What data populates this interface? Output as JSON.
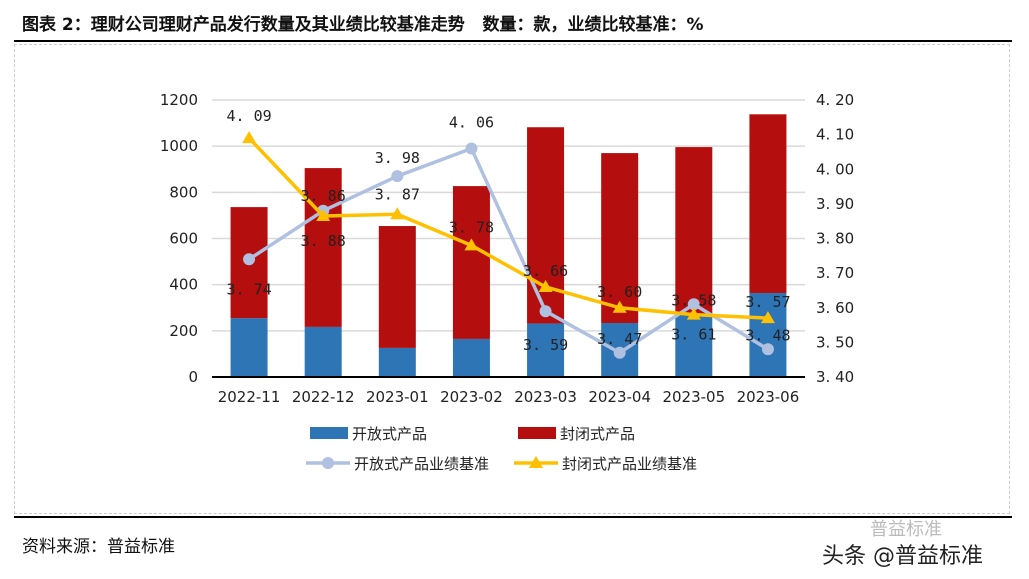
{
  "title": "图表 2：理财公司理财产品发行数量及其业绩比较基准走势   数量：款，业绩比较基准：%",
  "source": "资料来源：普益标准",
  "watermark": "头条 @普益标准",
  "watermark_faint": "普益标准",
  "chart_data": {
    "type": "bar",
    "stacked": true,
    "categories": [
      "2022-11",
      "2022-12",
      "2023-01",
      "2023-02",
      "2023-03",
      "2023-04",
      "2023-05",
      "2023-06"
    ],
    "y_left": {
      "range": [
        0,
        1200
      ],
      "ticks": [
        "0",
        "200",
        "400",
        "600",
        "800",
        "1000",
        "1200"
      ]
    },
    "y_right": {
      "range": [
        3.4,
        4.2
      ],
      "ticks": [
        "3.40",
        "3.50",
        "3.60",
        "3.70",
        "3.80",
        "3.90",
        "4.00",
        "4.10",
        "4.20"
      ]
    },
    "grid": true,
    "legend_position": "bottom",
    "series": [
      {
        "name": "开放式产品",
        "type": "bar",
        "axis": "left",
        "color": "#2E75B6",
        "values": [
          255,
          217,
          126,
          165,
          232,
          234,
          275,
          364
        ]
      },
      {
        "name": "封闭式产品",
        "type": "bar",
        "axis": "left",
        "color": "#B40E0E",
        "values": [
          481,
          688,
          528,
          662,
          850,
          736,
          721,
          774
        ]
      },
      {
        "name": "开放式产品业绩基准",
        "type": "line",
        "axis": "right",
        "color": "#AFC0E0",
        "marker": "circle",
        "values": [
          3.74,
          3.88,
          3.98,
          4.06,
          3.59,
          3.47,
          3.61,
          3.48
        ],
        "labels": [
          "3.74",
          "3.88",
          "3.98",
          "4.06",
          "3.59",
          "3.47",
          "3.61",
          "3.48"
        ]
      },
      {
        "name": "封闭式产品业绩基准",
        "type": "line",
        "axis": "right",
        "color": "#FFC000",
        "marker": "triangle",
        "values": [
          4.09,
          3.865,
          3.87,
          3.78,
          3.66,
          3.6,
          3.58,
          3.57
        ],
        "labels": [
          "4.09",
          "3.86",
          "3.87",
          "3.78",
          "3.66",
          "3.60",
          "3.58",
          "3.57"
        ]
      }
    ]
  }
}
